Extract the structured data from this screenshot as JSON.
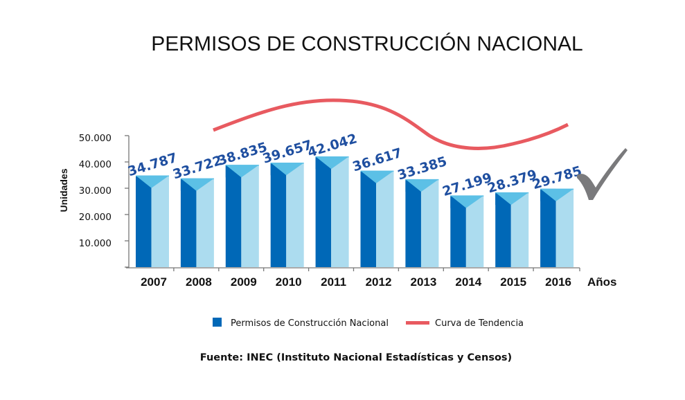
{
  "chart_data": {
    "type": "bar",
    "title": "PERMISOS DE CONSTRUCCIÓN NACIONAL",
    "xlabel": "Años",
    "ylabel": "Unidades",
    "categories": [
      "2007",
      "2008",
      "2009",
      "2010",
      "2011",
      "2012",
      "2013",
      "2014",
      "2015",
      "2016"
    ],
    "series": [
      {
        "name": "Permisos de Construcción Nacional",
        "values": [
          34787,
          33722,
          38835,
          39657,
          42042,
          36617,
          33385,
          27199,
          28379,
          29785
        ],
        "labels": [
          "34.787",
          "33.722",
          "38.835",
          "39.657",
          "42.042",
          "36.617",
          "33.385",
          "27.199",
          "28.379",
          "29.785"
        ],
        "color": "#0068b7"
      },
      {
        "name": "Curva de Tendencia",
        "type": "line",
        "color": "#e85a60"
      }
    ],
    "ylim": [
      0,
      50000
    ],
    "yticks": [
      0,
      10000,
      20000,
      30000,
      40000,
      50000
    ],
    "ytick_labels": [
      "",
      "10.000",
      "20.000",
      "30.000",
      "40.000",
      "50.000"
    ],
    "grid": false,
    "legend": "bottom",
    "source": "Fuente: INEC (Instituto Nacional Estadísticas y Censos)"
  },
  "colors": {
    "bar_dark": "#0068b7",
    "bar_light": "#acdcef",
    "bar_top": "#5cc0e6",
    "trend": "#e85a60",
    "label": "#1f4fa0",
    "check": "#7a7a7c"
  },
  "icons": {
    "checkmark": "checkmark-icon"
  }
}
